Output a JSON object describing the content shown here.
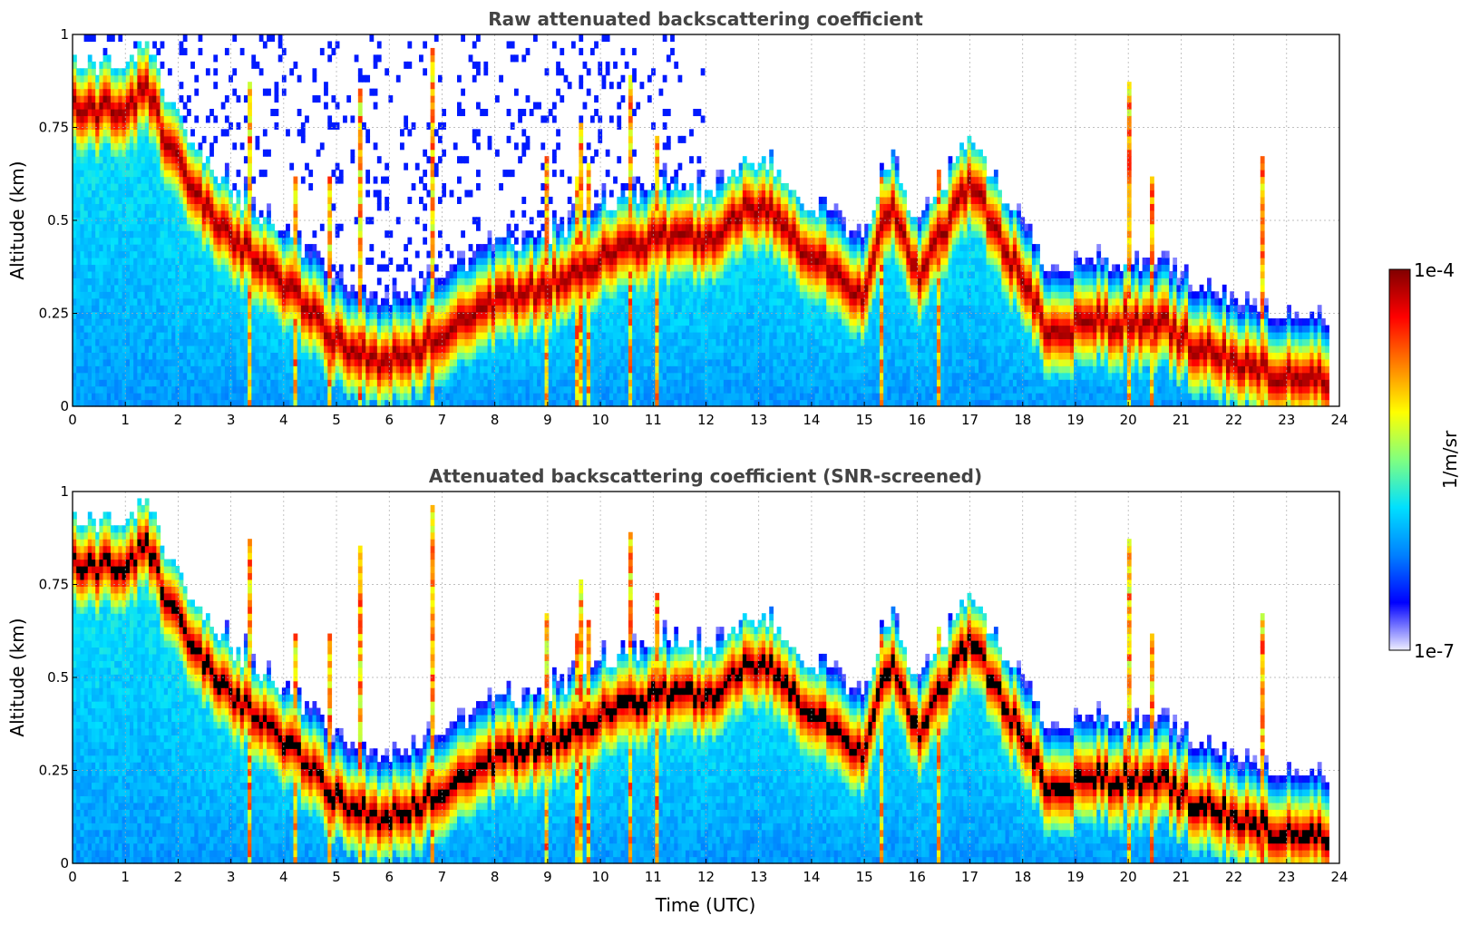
{
  "chart_data": [
    {
      "type": "heatmap",
      "title": "Raw attenuated backscattering coefficient",
      "xlabel": "",
      "ylabel": "Altitude (km)",
      "xlim": [
        0,
        24
      ],
      "ylim": [
        0,
        1
      ],
      "x_ticks": [
        "0",
        "1",
        "2",
        "3",
        "4",
        "5",
        "6",
        "7",
        "8",
        "9",
        "10",
        "11",
        "12",
        "13",
        "14",
        "15",
        "16",
        "17",
        "18",
        "19",
        "20",
        "21",
        "22",
        "23",
        "24"
      ],
      "y_ticks": [
        "0",
        "0.25",
        "0.5",
        "0.75",
        "1"
      ],
      "grid": true,
      "data_end_time": 23.8,
      "layer_altitude_km": {
        "time": [
          0.9,
          1.4,
          2,
          3,
          4,
          5,
          6,
          7,
          8,
          9,
          10,
          11,
          12,
          13,
          14,
          15,
          15.5,
          16,
          17,
          17.6,
          18.5,
          19.5,
          20.5,
          21.5,
          22.5,
          23.8
        ],
        "height": [
          0.8,
          0.85,
          0.65,
          0.45,
          0.33,
          0.18,
          0.12,
          0.2,
          0.28,
          0.33,
          0.4,
          0.45,
          0.45,
          0.55,
          0.4,
          0.3,
          0.55,
          0.35,
          0.6,
          0.45,
          0.2,
          0.23,
          0.23,
          0.15,
          0.1,
          0.08
        ]
      }
    },
    {
      "type": "heatmap",
      "title": "Attenuated backscattering coefficient (SNR-screened)",
      "xlabel": "Time (UTC)",
      "ylabel": "Altitude (km)",
      "xlim": [
        0,
        24
      ],
      "ylim": [
        0,
        1
      ],
      "x_ticks": [
        "0",
        "1",
        "2",
        "3",
        "4",
        "5",
        "6",
        "7",
        "8",
        "9",
        "10",
        "11",
        "12",
        "13",
        "14",
        "15",
        "16",
        "17",
        "18",
        "19",
        "20",
        "21",
        "22",
        "23",
        "24"
      ],
      "y_ticks": [
        "0",
        "0.25",
        "0.5",
        "0.75",
        "1"
      ],
      "grid": true,
      "data_end_time": 23.8,
      "saturated_color": "#000000"
    }
  ],
  "colorbar": {
    "label": "1/m/sr",
    "max_label": "1e-4",
    "min_label": "1e-7",
    "scale": "log",
    "colormap": "jet",
    "colors": [
      "#eeeeff",
      "#0000ff",
      "#0080ff",
      "#00e0ff",
      "#80ff80",
      "#ffff00",
      "#ff8000",
      "#ff0000",
      "#800000"
    ]
  }
}
